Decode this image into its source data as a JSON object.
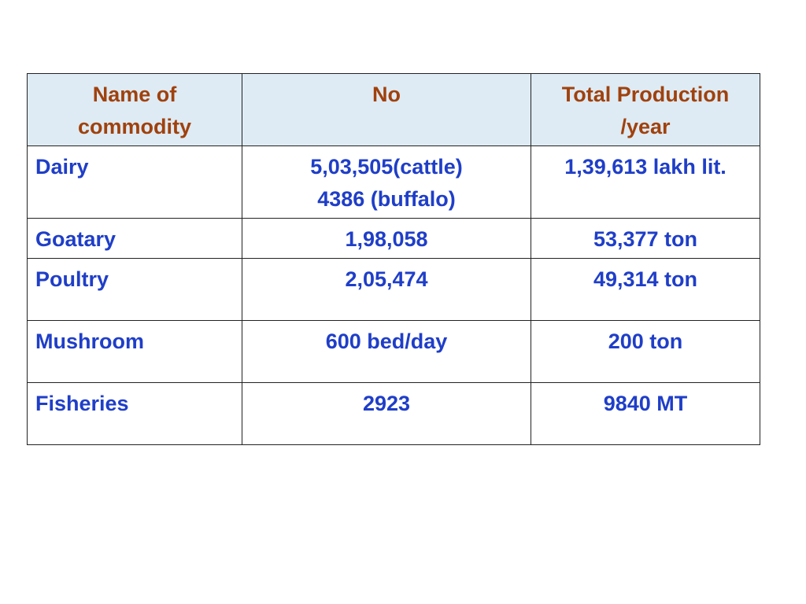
{
  "table": {
    "headers": {
      "name": [
        "Name of",
        "commodity"
      ],
      "no": [
        "No"
      ],
      "production": [
        "Total Production",
        "/year"
      ]
    },
    "rows": [
      {
        "name": "Dairy",
        "no": [
          "5,03,505(cattle)",
          "4386 (buffalo)"
        ],
        "production": "1,39,613 lakh lit."
      },
      {
        "name": "Goatary",
        "no": [
          "1,98,058"
        ],
        "production": "53,377 ton"
      },
      {
        "name": "Poultry",
        "no": [
          "2,05,474"
        ],
        "production": "49,314 ton"
      },
      {
        "name": "Mushroom",
        "no": [
          "600 bed/day"
        ],
        "production": "200 ton"
      },
      {
        "name": "Fisheries",
        "no": [
          "2923"
        ],
        "production": "9840 MT"
      }
    ]
  },
  "colors": {
    "header_bg": "#deebf4",
    "header_text": "#a0410d",
    "body_text": "#1f3ec8",
    "border": "#222222"
  }
}
